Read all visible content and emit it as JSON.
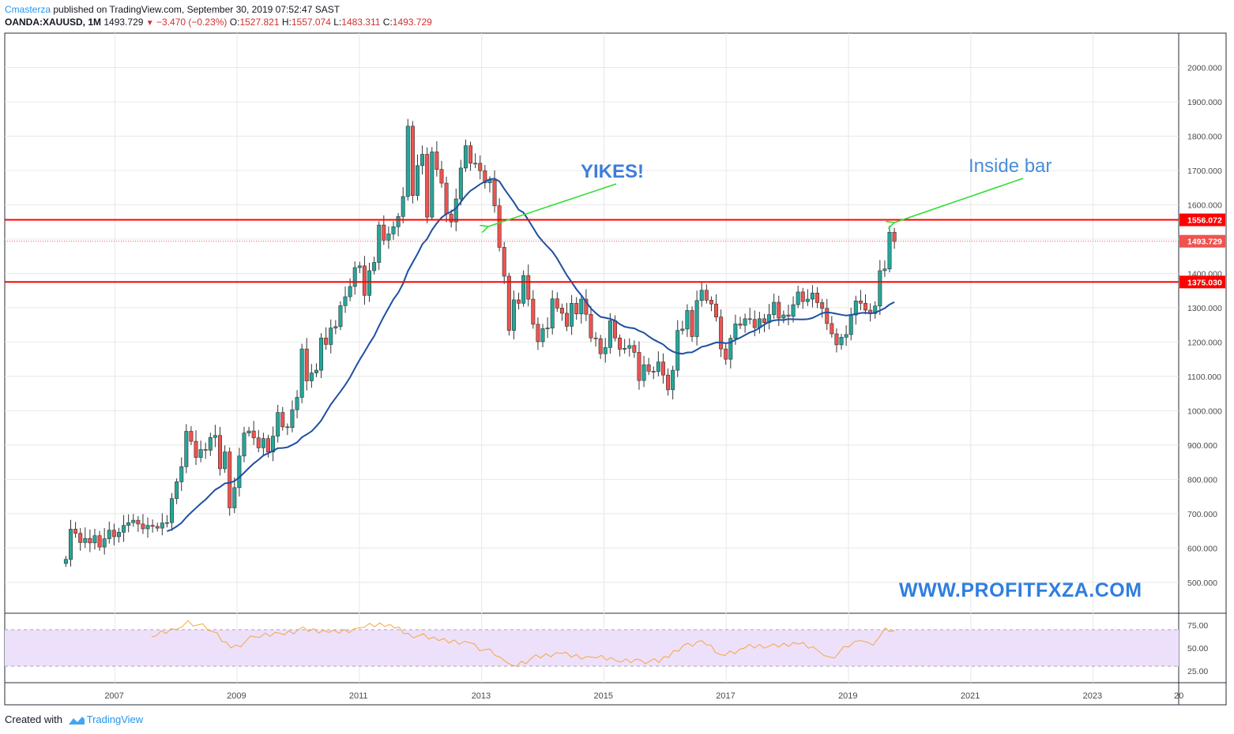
{
  "header": {
    "author": "Cmasterza",
    "published": "published on TradingView.com, September 30, 2019 07:52:47 SAST",
    "symbol": "OANDA:XAUUSD, 1M",
    "price": "1493.729",
    "change": "−3.470 (−0.23%)",
    "open_label": "O:",
    "open": "1527.821",
    "high_label": "H:",
    "high": "1557.074",
    "low_label": "L:",
    "low": "1483.311",
    "close_label": "C:",
    "close": "1493.729"
  },
  "footer": {
    "created_with": "Created with",
    "brand": "TradingView"
  },
  "annotations": {
    "yikes": "YIKES!",
    "inside_bar": "Inside bar",
    "website": "WWW.PROFITFXZA.COM"
  },
  "chart_data": {
    "type": "candlestick",
    "symbol": "OANDA:XAUUSD",
    "interval": "1M",
    "y_ticks": [
      "500.000",
      "600.000",
      "700.000",
      "800.000",
      "900.000",
      "1000.000",
      "1100.000",
      "1200.000",
      "1300.000",
      "1400.000",
      "1500.000",
      "1600.000",
      "1700.000",
      "1800.000",
      "1900.000",
      "2000.000"
    ],
    "ylim": [
      410,
      2100
    ],
    "x_ticks": [
      "2007",
      "2009",
      "2011",
      "2013",
      "2015",
      "2017",
      "2019",
      "2021",
      "2023",
      "20"
    ],
    "xlim": [
      2005.2,
      2024.4
    ],
    "horizontal_lines": [
      {
        "label": "1556.072",
        "value": 1556.072,
        "color": "#ff0000"
      },
      {
        "label": "1375.030",
        "value": 1375.03,
        "color": "#ff0000"
      }
    ],
    "last_price_line": {
      "label": "1493.729",
      "value": 1493.729,
      "color": "#ef5350"
    },
    "colors": {
      "up": "#26a69a",
      "down": "#ef5350",
      "ma": "#1e4fa3",
      "rsi": "#f5a742",
      "rsi_band": "#ede0fa"
    },
    "moving_average_start": 2007.83,
    "ohlc_closes": [
      567,
      655,
      643,
      616,
      628,
      615,
      636,
      603,
      627,
      652,
      633,
      646,
      666,
      674,
      681,
      670,
      656,
      666,
      663,
      658,
      673,
      674,
      744,
      793,
      837,
      940,
      911,
      864,
      887,
      885,
      922,
      928,
      831,
      880,
      717,
      776,
      868,
      935,
      941,
      921,
      892,
      919,
      880,
      926,
      995,
      953,
      951,
      1003,
      1039,
      1180,
      1087,
      1110,
      1118,
      1212,
      1193,
      1241,
      1245,
      1306,
      1332,
      1362,
      1417,
      1422,
      1336,
      1408,
      1432,
      1541,
      1497,
      1515,
      1536,
      1566,
      1624,
      1829,
      1627,
      1714,
      1747,
      1564,
      1754,
      1703,
      1663,
      1573,
      1550,
      1617,
      1707,
      1772,
      1721,
      1721,
      1699,
      1664,
      1672,
      1597,
      1476,
      1392,
      1234,
      1323,
      1313,
      1394,
      1325,
      1252,
      1201,
      1239,
      1241,
      1326,
      1299,
      1284,
      1246,
      1313,
      1282,
      1325,
      1281,
      1212,
      1210,
      1166,
      1184,
      1262,
      1212,
      1179,
      1182,
      1190,
      1170,
      1088,
      1134,
      1115,
      1114,
      1142,
      1104,
      1061,
      1118,
      1234,
      1238,
      1292,
      1216,
      1321,
      1351,
      1322,
      1311,
      1273,
      1180,
      1150,
      1211,
      1253,
      1249,
      1268,
      1266,
      1242,
      1268,
      1257,
      1280,
      1316,
      1270,
      1279,
      1275,
      1309,
      1346,
      1318,
      1325,
      1343,
      1315,
      1298,
      1254,
      1224,
      1192,
      1214,
      1222,
      1279,
      1320,
      1313,
      1293,
      1283,
      1305,
      1408,
      1413,
      1520,
      1493
    ],
    "rsi_ticks": [
      "75.00",
      "50.00",
      "25.00"
    ],
    "rsi_band": [
      30,
      70
    ],
    "rsi_series": [
      {
        "x": 2007.6,
        "y": 62
      },
      {
        "x": 2008.0,
        "y": 70
      },
      {
        "x": 2008.2,
        "y": 80
      },
      {
        "x": 2008.6,
        "y": 68
      },
      {
        "x": 2008.9,
        "y": 50
      },
      {
        "x": 2009.3,
        "y": 62
      },
      {
        "x": 2009.7,
        "y": 66
      },
      {
        "x": 2010.0,
        "y": 70
      },
      {
        "x": 2010.5,
        "y": 67
      },
      {
        "x": 2011.0,
        "y": 72
      },
      {
        "x": 2011.5,
        "y": 76
      },
      {
        "x": 2011.8,
        "y": 66
      },
      {
        "x": 2012.3,
        "y": 58
      },
      {
        "x": 2012.8,
        "y": 56
      },
      {
        "x": 2013.3,
        "y": 40
      },
      {
        "x": 2013.5,
        "y": 31
      },
      {
        "x": 2013.8,
        "y": 38
      },
      {
        "x": 2014.3,
        "y": 44
      },
      {
        "x": 2014.8,
        "y": 40
      },
      {
        "x": 2015.2,
        "y": 36
      },
      {
        "x": 2015.6,
        "y": 37
      },
      {
        "x": 2015.9,
        "y": 34
      },
      {
        "x": 2016.3,
        "y": 53
      },
      {
        "x": 2016.6,
        "y": 58
      },
      {
        "x": 2016.9,
        "y": 43
      },
      {
        "x": 2017.3,
        "y": 50
      },
      {
        "x": 2017.7,
        "y": 52
      },
      {
        "x": 2018.1,
        "y": 56
      },
      {
        "x": 2018.5,
        "y": 47
      },
      {
        "x": 2018.7,
        "y": 40
      },
      {
        "x": 2019.0,
        "y": 51
      },
      {
        "x": 2019.2,
        "y": 58
      },
      {
        "x": 2019.4,
        "y": 53
      },
      {
        "x": 2019.6,
        "y": 72
      },
      {
        "x": 2019.75,
        "y": 69
      }
    ]
  }
}
